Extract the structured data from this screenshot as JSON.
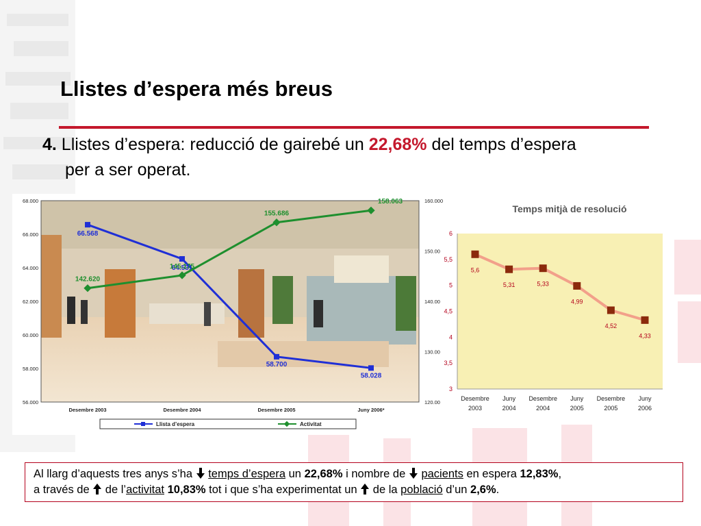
{
  "slide": {
    "title": "Llistes d’espera més breus",
    "item_number": "4.",
    "subtitle_pre": " Llistes d’espera: reducció de gairebé un ",
    "subtitle_highlight": "22,68%",
    "subtitle_post": " del temps d’espera",
    "subtitle_line2": "per a ser operat."
  },
  "colors": {
    "accent_red": "#c4182c",
    "line_blue": "#1f2fd6",
    "line_green": "#1e8f2e",
    "resolution_line": "#f2a08a",
    "resolution_marker": "#8b2a0c",
    "plot_bg": "#f8f0b4"
  },
  "chart_data": [
    {
      "type": "line",
      "categories": [
        "Desembre 2003",
        "Desembre 2004",
        "Desembre 2005",
        "Juny 2006*"
      ],
      "left_axis": {
        "ticks": [
          "68.000",
          "66.000",
          "64.000",
          "62.000",
          "60.000",
          "58.000",
          "56.000"
        ],
        "ylim": [
          56000,
          68000
        ]
      },
      "right_axis": {
        "ticks": [
          "160.000",
          "150.00",
          "140.00",
          "130.00",
          "120.00"
        ],
        "ylim": [
          120000,
          160000
        ]
      },
      "series": [
        {
          "name": "Llista d’espera",
          "axis": "left",
          "color": "#1f2fd6",
          "values": [
            66568,
            64531,
            58700,
            58028
          ],
          "labels": [
            "66.568",
            "64.531",
            "58.700",
            "58.028"
          ]
        },
        {
          "name": "Activitat",
          "axis": "right",
          "color": "#1e8f2e",
          "values": [
            142620,
            145175,
            155686,
            158063
          ],
          "labels": [
            "142.620",
            "145.175",
            "155.686",
            "158.063"
          ]
        }
      ],
      "legend": "bottom",
      "grid": false
    },
    {
      "type": "line",
      "title": "Temps mitjà de resolució",
      "categories": [
        [
          "Desembre",
          "2003"
        ],
        [
          "Juny",
          "2004"
        ],
        [
          "Desembre",
          "2004"
        ],
        [
          "Juny",
          "2005"
        ],
        [
          "Desembre",
          "2005"
        ],
        [
          "Juny",
          "2006"
        ]
      ],
      "y_ticks": [
        "6",
        "5,5",
        "5",
        "4,5",
        "4",
        "3,5",
        "3"
      ],
      "ylim": [
        3,
        6
      ],
      "series": [
        {
          "values": [
            5.6,
            5.31,
            5.33,
            4.99,
            4.52,
            4.33
          ],
          "labels": [
            "5,6",
            "5,31",
            "5,33",
            "4,99",
            "4,52",
            "4,33"
          ]
        }
      ],
      "grid": false
    }
  ],
  "note": {
    "t1": "Al llarg d’aquests tres anys s’ha ",
    "t2": "temps d’espera",
    "t3": " un ",
    "t4": "22,68%",
    "t5": " i nombre de ",
    "t6": "pacients",
    "t7": " en espera ",
    "t8": "12,83%",
    "t9": ",",
    "t10": "a través de ",
    "t11": " de l’",
    "t12": "activitat",
    "t13": " ",
    "t14": "10,83%",
    "t15": " tot i que s’ha experimentat un ",
    "t16": " de la ",
    "t17": "població",
    "t18": " d’un ",
    "t19": "2,6%",
    "t20": "."
  }
}
